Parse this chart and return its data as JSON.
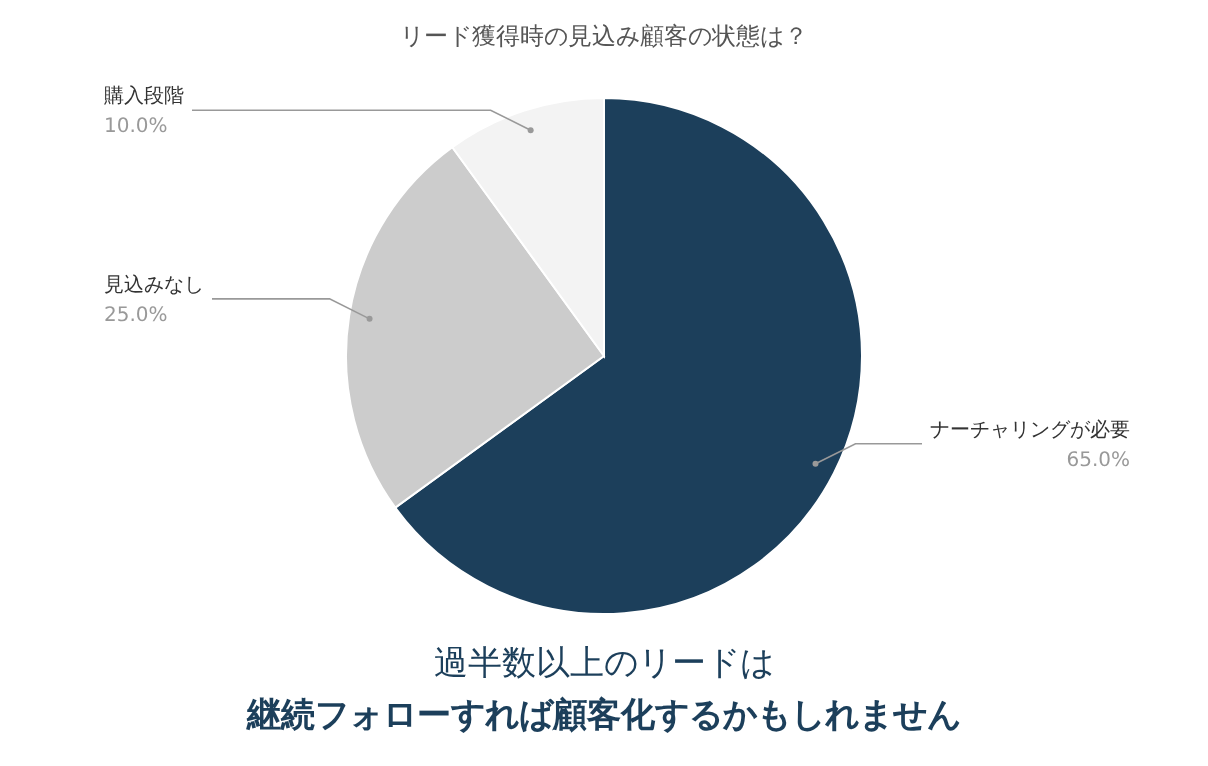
{
  "chart_data": {
    "type": "pie",
    "title": "リード獲得時の見込み顧客の状態は？",
    "categories": [
      "ナーチャリングが必要",
      "見込みなし",
      "購入段階"
    ],
    "values": [
      65,
      25,
      10
    ],
    "colors": [
      "#1c3f5b",
      "#cccccc",
      "#f3f3f3"
    ],
    "value_labels": [
      "65.0%",
      "25.0%",
      "10.0%"
    ],
    "annotations": [
      "過半数以上のリードは",
      "継続フォローすれば顧客化するかもしれません"
    ]
  }
}
